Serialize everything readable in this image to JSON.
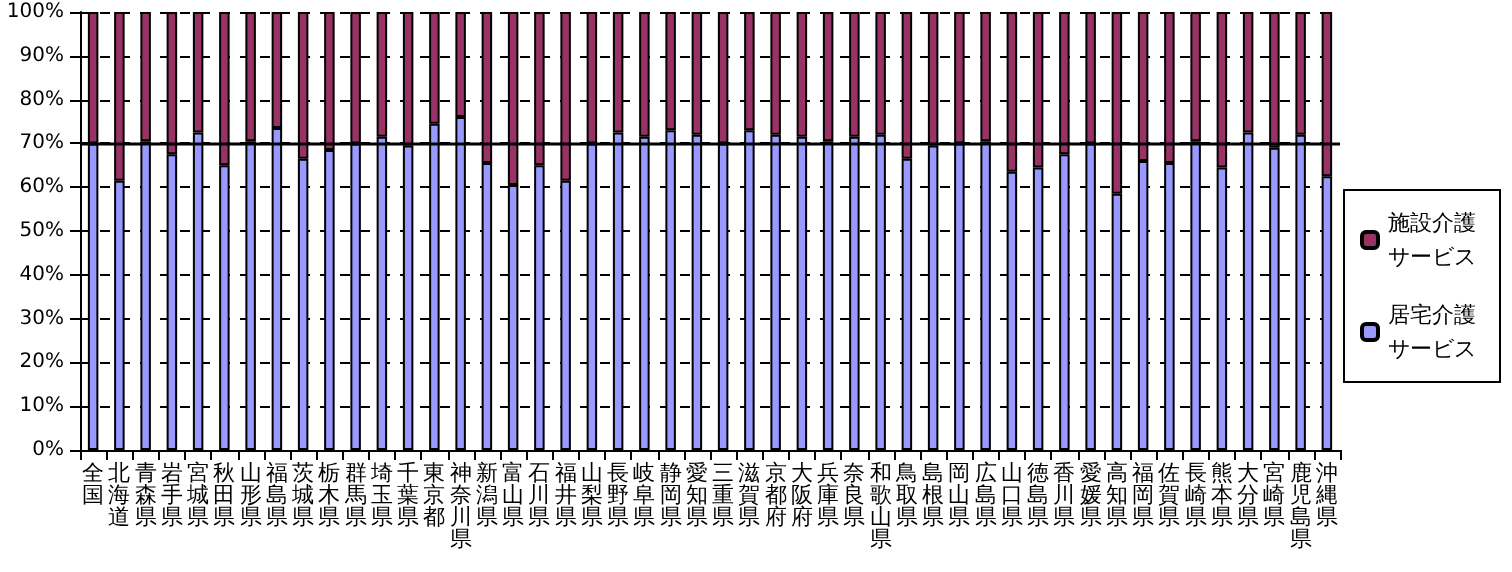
{
  "chart_data": {
    "type": "bar",
    "stacked": true,
    "categories": [
      "全国",
      "北海道",
      "青森県",
      "岩手県",
      "宮城県",
      "秋田県",
      "山形県",
      "福島県",
      "茨城県",
      "栃木県",
      "群馬県",
      "埼玉県",
      "千葉県",
      "東京都",
      "神奈川県",
      "新潟県",
      "富山県",
      "石川県",
      "福井県",
      "山梨県",
      "長野県",
      "岐阜県",
      "静岡県",
      "愛知県",
      "三重県",
      "滋賀県",
      "京都府",
      "大阪府",
      "兵庫県",
      "奈良県",
      "和歌山県",
      "鳥取県",
      "島根県",
      "岡山県",
      "広島県",
      "山口県",
      "徳島県",
      "香川県",
      "愛媛県",
      "高知県",
      "福岡県",
      "佐賀県",
      "長崎県",
      "熊本県",
      "大分県",
      "宮崎県",
      "鹿児島県",
      "沖縄県"
    ],
    "series": [
      {
        "name": "居宅介護サービス",
        "color": "#9999ff",
        "values": [
          70,
          61.5,
          70.5,
          67.5,
          72.5,
          65,
          70.5,
          73.5,
          66.5,
          68.5,
          70,
          71.5,
          69.5,
          74.5,
          76,
          65.5,
          60.5,
          65,
          61.5,
          70,
          72.5,
          71.5,
          73,
          72,
          70,
          73,
          72,
          71.5,
          70.5,
          71.5,
          72,
          66.5,
          69.5,
          70,
          70.5,
          63.5,
          64.5,
          67.5,
          70,
          58.5,
          66,
          65.5,
          70.5,
          64.5,
          72.5,
          69,
          72,
          62.5
        ]
      },
      {
        "name": "施設介護サービス",
        "color": "#993366",
        "values": [
          30,
          38.5,
          29.5,
          32.5,
          27.5,
          35,
          29.5,
          26.5,
          33.5,
          31.5,
          30,
          28.5,
          30.5,
          25.5,
          24,
          34.5,
          39.5,
          35,
          38.5,
          30,
          27.5,
          28.5,
          27,
          28,
          30,
          27,
          28,
          28.5,
          29.5,
          28.5,
          28,
          33.5,
          30.5,
          30,
          29.5,
          36.5,
          35.5,
          32.5,
          30,
          41.5,
          34,
          34.5,
          29.5,
          35.5,
          27.5,
          31,
          28,
          37.5
        ]
      }
    ],
    "ylim": [
      0,
      100
    ],
    "yticks": [
      {
        "value": 0,
        "label": "0%"
      },
      {
        "value": 10,
        "label": "10%"
      },
      {
        "value": 20,
        "label": "20%"
      },
      {
        "value": 30,
        "label": "30%"
      },
      {
        "value": 40,
        "label": "40%"
      },
      {
        "value": 50,
        "label": "50%"
      },
      {
        "value": 60,
        "label": "60%"
      },
      {
        "value": 70,
        "label": "70%"
      },
      {
        "value": 80,
        "label": "80%"
      },
      {
        "value": 90,
        "label": "90%"
      },
      {
        "value": 100,
        "label": "100%"
      }
    ],
    "grid": "y",
    "legend": "right",
    "ref_lines": [
      {
        "axis": "y",
        "value": 70,
        "color": "#000000",
        "line_style": "solid"
      }
    ]
  }
}
